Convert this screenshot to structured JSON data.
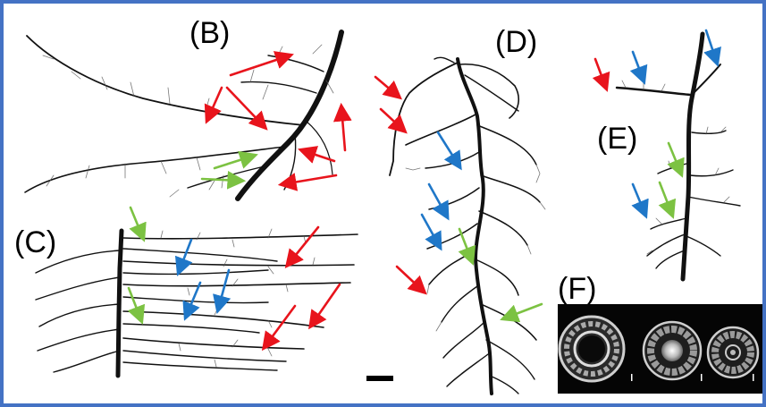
{
  "panels": {
    "b": {
      "label": "(B)"
    },
    "c": {
      "label": "(C)"
    },
    "d": {
      "label": "(D)"
    },
    "e": {
      "label": "(E)"
    },
    "f": {
      "label": "(F)"
    }
  },
  "colors": {
    "frame": "#4472c4",
    "arrow_red": "#e8141c",
    "arrow_blue": "#1f77c8",
    "arrow_green": "#7cc242",
    "root": "#111111",
    "micrograph_bg": "#050505",
    "micrograph_tissue": "#d8d8d8"
  },
  "icons": {
    "arrows": "arrow-icon",
    "scale_bar": "scale-bar-icon"
  }
}
